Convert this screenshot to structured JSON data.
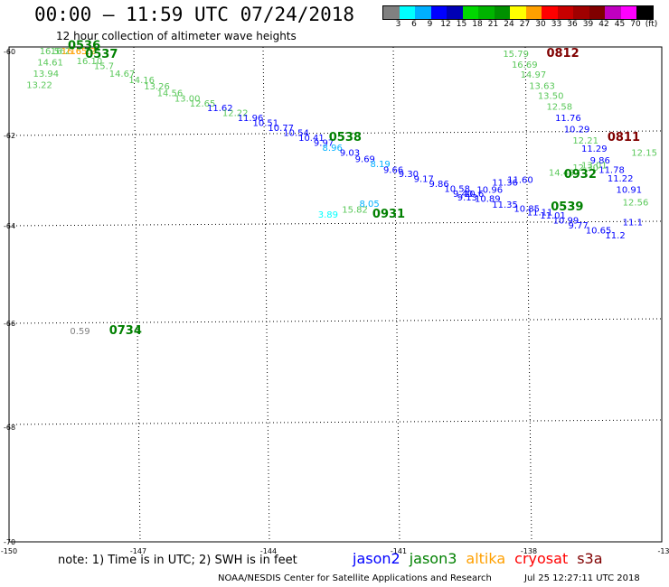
{
  "header": {
    "title": "00:00 – 11:59 UTC 07/24/2018",
    "subtitle": "12 hour collection of altimeter wave heights"
  },
  "colorbar": {
    "colors": [
      "#808080",
      "#00ffff",
      "#00b0ff",
      "#0000ff",
      "#0000b4",
      "#00d800",
      "#00b400",
      "#009000",
      "#ffff00",
      "#ffa000",
      "#ff0000",
      "#c80000",
      "#a00000",
      "#800000",
      "#c000c0",
      "#ff00ff",
      "#000000"
    ],
    "labels": [
      "3",
      "6",
      "9",
      "12",
      "15",
      "18",
      "21",
      "24",
      "27",
      "30",
      "33",
      "36",
      "39",
      "42",
      "45",
      "70",
      "(ft)"
    ]
  },
  "axes": {
    "lat_labels": [
      "-60",
      "-62",
      "-64",
      "-66",
      "-68",
      "-70"
    ],
    "lon_labels": [
      "-150",
      "-147",
      "-144",
      "-141",
      "-138",
      "-13"
    ]
  },
  "chart_data": {
    "type": "scatter",
    "units": "ft",
    "xlabel": "",
    "ylabel": "",
    "xlim": [
      -150,
      -135
    ],
    "ylim": [
      -70,
      -60
    ],
    "observations": [
      {
        "lon": -149.3,
        "lat": -60.15,
        "text": "16.56",
        "color": "#5ac85a"
      },
      {
        "lon": -149.05,
        "lat": -60.15,
        "text": "16.2",
        "color": "#5ac85a"
      },
      {
        "lon": -148.8,
        "lat": -60.15,
        "text": "16.65",
        "color": "#ffa000"
      },
      {
        "lon": -148.6,
        "lat": -60.15,
        "text": "16.22",
        "color": "#ffa000"
      },
      {
        "lon": -149.35,
        "lat": -60.37,
        "text": "14.61",
        "color": "#5ac85a"
      },
      {
        "lon": -149.45,
        "lat": -60.6,
        "text": "13.94",
        "color": "#5ac85a"
      },
      {
        "lon": -149.6,
        "lat": -60.83,
        "text": "13.22",
        "color": "#5ac85a"
      },
      {
        "lon": -148.45,
        "lat": -60.35,
        "text": "16.10",
        "color": "#5ac85a"
      },
      {
        "lon": -148.05,
        "lat": -60.45,
        "text": "15.7",
        "color": "#5ac85a"
      },
      {
        "lon": -147.7,
        "lat": -60.6,
        "text": "14.67",
        "color": "#5ac85a"
      },
      {
        "lon": -147.25,
        "lat": -60.73,
        "text": "14.16",
        "color": "#5ac85a"
      },
      {
        "lon": -146.9,
        "lat": -60.86,
        "text": "13.26",
        "color": "#5ac85a"
      },
      {
        "lon": -146.6,
        "lat": -60.99,
        "text": "14.56",
        "color": "#5ac85a"
      },
      {
        "lon": -146.2,
        "lat": -61.1,
        "text": "13.00",
        "color": "#5ac85a"
      },
      {
        "lon": -145.85,
        "lat": -61.2,
        "text": "12.65",
        "color": "#5ac85a"
      },
      {
        "lon": -145.45,
        "lat": -61.3,
        "text": "11.62",
        "color": "#0000ff"
      },
      {
        "lon": -145.1,
        "lat": -61.4,
        "text": "12.22",
        "color": "#5ac85a"
      },
      {
        "lon": -144.75,
        "lat": -61.5,
        "text": "11.96",
        "color": "#0000ff"
      },
      {
        "lon": -144.4,
        "lat": -61.6,
        "text": "10.51",
        "color": "#0000ff"
      },
      {
        "lon": -144.05,
        "lat": -61.7,
        "text": "10.77",
        "color": "#0000ff"
      },
      {
        "lon": -143.7,
        "lat": -61.8,
        "text": "10.54",
        "color": "#0000ff"
      },
      {
        "lon": -143.35,
        "lat": -61.9,
        "text": "10.41",
        "color": "#0000ff"
      },
      {
        "lon": -143.0,
        "lat": -62.0,
        "text": "9.97",
        "color": "#0000ff"
      },
      {
        "lon": -142.8,
        "lat": -62.1,
        "text": "8.96",
        "color": "#00b0ff"
      },
      {
        "lon": -142.4,
        "lat": -62.2,
        "text": "9.03",
        "color": "#0000ff"
      },
      {
        "lon": -142.05,
        "lat": -62.33,
        "text": "9.69",
        "color": "#0000ff"
      },
      {
        "lon": -141.7,
        "lat": -62.43,
        "text": "8.19",
        "color": "#00b0ff"
      },
      {
        "lon": -141.4,
        "lat": -62.55,
        "text": "9.66",
        "color": "#0000ff"
      },
      {
        "lon": -141.05,
        "lat": -62.63,
        "text": "9.30",
        "color": "#0000ff"
      },
      {
        "lon": -140.7,
        "lat": -62.73,
        "text": "9.17",
        "color": "#0000ff"
      },
      {
        "lon": -140.35,
        "lat": -62.83,
        "text": "9.86",
        "color": "#0000ff"
      },
      {
        "lon": -140.0,
        "lat": -62.93,
        "text": "10.58",
        "color": "#0000ff"
      },
      {
        "lon": -139.8,
        "lat": -63.03,
        "text": "9.40",
        "color": "#0000ff"
      },
      {
        "lon": -139.55,
        "lat": -63.03,
        "text": "10.6",
        "color": "#0000ff"
      },
      {
        "lon": -139.25,
        "lat": -62.95,
        "text": "10.96",
        "color": "#0000ff"
      },
      {
        "lon": -138.9,
        "lat": -62.8,
        "text": "11.36",
        "color": "#0000ff"
      },
      {
        "lon": -138.55,
        "lat": -62.75,
        "text": "11.60",
        "color": "#0000ff"
      },
      {
        "lon": -139.7,
        "lat": -63.1,
        "text": "9.13",
        "color": "#0000ff"
      },
      {
        "lon": -139.3,
        "lat": -63.13,
        "text": "10.89",
        "color": "#0000ff"
      },
      {
        "lon": -138.9,
        "lat": -63.25,
        "text": "11.35",
        "color": "#0000ff"
      },
      {
        "lon": -138.4,
        "lat": -63.33,
        "text": "10.85",
        "color": "#0000ff"
      },
      {
        "lon": -138.1,
        "lat": -63.4,
        "text": "11.11",
        "color": "#0000ff"
      },
      {
        "lon": -137.8,
        "lat": -63.47,
        "text": "11.01",
        "color": "#0000ff"
      },
      {
        "lon": -137.5,
        "lat": -63.57,
        "text": "10.99",
        "color": "#0000ff"
      },
      {
        "lon": -137.15,
        "lat": -63.67,
        "text": "9.77",
        "color": "#0000ff"
      },
      {
        "lon": -136.75,
        "lat": -63.77,
        "text": "10.65",
        "color": "#0000ff"
      },
      {
        "lon": -136.3,
        "lat": -63.87,
        "text": "11.2",
        "color": "#0000ff"
      },
      {
        "lon": -135.9,
        "lat": -63.6,
        "text": "11.1",
        "color": "#0000ff"
      },
      {
        "lon": -142.9,
        "lat": -63.45,
        "text": "3.89",
        "color": "#00ffff"
      },
      {
        "lon": -142.35,
        "lat": -63.35,
        "text": "15.82",
        "color": "#5ac85a"
      },
      {
        "lon": -141.95,
        "lat": -63.23,
        "text": "8.05",
        "color": "#00b0ff"
      },
      {
        "lon": -138.65,
        "lat": -60.2,
        "text": "15.79",
        "color": "#5ac85a"
      },
      {
        "lon": -138.45,
        "lat": -60.42,
        "text": "16.69",
        "color": "#5ac85a"
      },
      {
        "lon": -138.25,
        "lat": -60.62,
        "text": "14.97",
        "color": "#5ac85a"
      },
      {
        "lon": -138.05,
        "lat": -60.85,
        "text": "13.63",
        "color": "#5ac85a"
      },
      {
        "lon": -137.85,
        "lat": -61.05,
        "text": "13.50",
        "color": "#5ac85a"
      },
      {
        "lon": -137.65,
        "lat": -61.27,
        "text": "12.58",
        "color": "#5ac85a"
      },
      {
        "lon": -137.45,
        "lat": -61.5,
        "text": "11.76",
        "color": "#0000ff"
      },
      {
        "lon": -137.25,
        "lat": -61.72,
        "text": "10.29",
        "color": "#0000ff"
      },
      {
        "lon": -137.05,
        "lat": -61.95,
        "text": "12.21",
        "color": "#5ac85a"
      },
      {
        "lon": -136.85,
        "lat": -62.12,
        "text": "11.29",
        "color": "#0000ff"
      },
      {
        "lon": -136.65,
        "lat": -62.35,
        "text": "9.86",
        "color": "#0000ff"
      },
      {
        "lon": -136.45,
        "lat": -62.55,
        "text": "11.78",
        "color": "#0000ff"
      },
      {
        "lon": -136.25,
        "lat": -62.72,
        "text": "11.22",
        "color": "#0000ff"
      },
      {
        "lon": -136.05,
        "lat": -62.95,
        "text": "10.91",
        "color": "#0000ff"
      },
      {
        "lon": -135.9,
        "lat": -63.2,
        "text": "12.56",
        "color": "#5ac85a"
      },
      {
        "lon": -135.7,
        "lat": -62.2,
        "text": "12.15",
        "color": "#5ac85a"
      },
      {
        "lon": -137.6,
        "lat": -62.6,
        "text": "14.49",
        "color": "#5ac85a"
      },
      {
        "lon": -137.05,
        "lat": -62.5,
        "text": "12.30",
        "color": "#5ac85a"
      },
      {
        "lon": -136.85,
        "lat": -62.45,
        "text": "13.01",
        "color": "#5ac85a"
      },
      {
        "lon": -148.6,
        "lat": -65.8,
        "text": "0.59",
        "color": "#808080"
      }
    ],
    "time_labels": [
      {
        "lon": -148.65,
        "lat": -60.05,
        "text": "0536",
        "color": "#008000"
      },
      {
        "lon": -148.25,
        "lat": -60.22,
        "text": "0537",
        "color": "#008000"
      },
      {
        "lon": -142.65,
        "lat": -61.9,
        "text": "0538",
        "color": "#008000"
      },
      {
        "lon": -137.55,
        "lat": -63.3,
        "text": "0539",
        "color": "#008000"
      },
      {
        "lon": -141.65,
        "lat": -63.45,
        "text": "0931",
        "color": "#008000"
      },
      {
        "lon": -137.25,
        "lat": -62.65,
        "text": "0932",
        "color": "#008000"
      },
      {
        "lon": -137.65,
        "lat": -60.2,
        "text": "0812",
        "color": "#800000"
      },
      {
        "lon": -136.25,
        "lat": -61.9,
        "text": "0811",
        "color": "#800000"
      },
      {
        "lon": -147.7,
        "lat": -65.8,
        "text": "0734",
        "color": "#008000"
      }
    ]
  },
  "footer": {
    "note": "note: 1) Time is in UTC; 2) SWH is in feet",
    "satellites": [
      {
        "name": "jason2",
        "color": "#0000ff"
      },
      {
        "name": "jason3",
        "color": "#008000"
      },
      {
        "name": "altika",
        "color": "#ffa000"
      },
      {
        "name": "cryosat",
        "color": "#ff0000"
      },
      {
        "name": "s3a",
        "color": "#800000"
      }
    ],
    "credit": "NOAA/NESDIS Center for Satellite Applications and Research",
    "timestamp": "Jul 25 12:27:11 UTC 2018"
  }
}
